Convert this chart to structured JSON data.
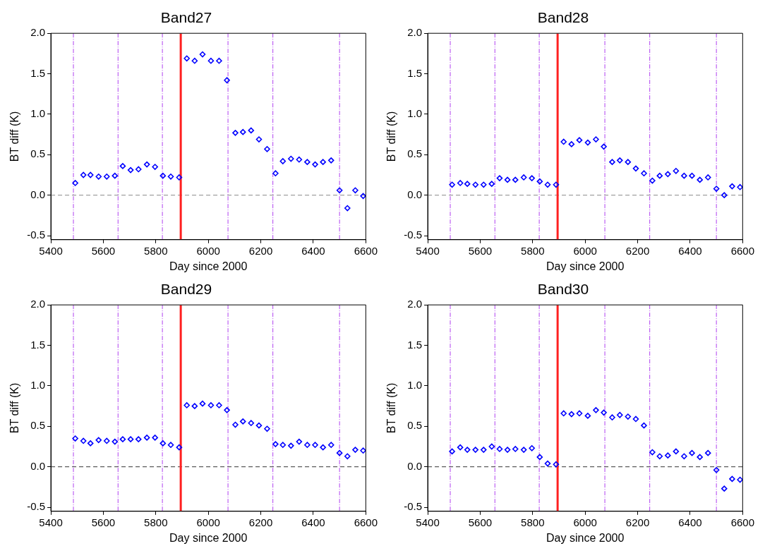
{
  "chart_data": [
    {
      "type": "scatter",
      "title": "Band27",
      "xlabel": "Day since 2000",
      "ylabel": "BT diff (K)",
      "marker": "diamond",
      "grid": false,
      "x": [
        5493,
        5524,
        5551,
        5582,
        5613,
        5644,
        5674,
        5704,
        5734,
        5766,
        5797,
        5827,
        5857,
        5889,
        5918,
        5948,
        5978,
        6010,
        6041,
        6071,
        6103,
        6132,
        6163,
        6193,
        6224,
        6256,
        6284,
        6315,
        6346,
        6377,
        6407,
        6437,
        6468,
        6500,
        6530,
        6560,
        6590
      ],
      "series": [
        {
          "color": "#0000ff",
          "values": [
            0.15,
            0.25,
            0.25,
            0.23,
            0.23,
            0.24,
            0.36,
            0.31,
            0.32,
            0.38,
            0.35,
            0.24,
            0.23,
            0.22,
            1.69,
            1.66,
            1.74,
            1.66,
            1.66,
            1.42,
            0.77,
            0.78,
            0.8,
            0.69,
            0.57,
            0.27,
            0.42,
            0.45,
            0.44,
            0.41,
            0.38,
            0.41,
            0.43,
            0.06,
            -0.16,
            0.06,
            -0.01
          ]
        }
      ],
      "xlim": [
        5400,
        6600
      ],
      "xticks": [
        5400,
        5600,
        5800,
        6000,
        6200,
        6400,
        6600
      ],
      "ylim": [
        -0.55,
        2.0
      ],
      "yticks": [
        {
          "value": -0.5,
          "label": "-0.5"
        },
        {
          "value": 0,
          "label": "0.0"
        },
        {
          "value": 0.5,
          "label": "0.5"
        },
        {
          "value": 1,
          "label": "1.0"
        },
        {
          "value": 1.5,
          "label": "1.5"
        },
        {
          "value": 2,
          "label": "2.0"
        }
      ],
      "ref_lines": [
        {
          "axis": "y",
          "value": 0,
          "color": "#888888",
          "line_style": "dashed"
        },
        {
          "axis": "x",
          "value": 5486,
          "color": "#b040f0",
          "line_style": "dashed"
        },
        {
          "axis": "x",
          "value": 5656,
          "color": "#b040f0",
          "line_style": "dashed"
        },
        {
          "axis": "x",
          "value": 5825,
          "color": "#b040f0",
          "line_style": "dashed"
        },
        {
          "axis": "x",
          "value": 5895,
          "color": "#ff2020",
          "line_style": "solid"
        },
        {
          "axis": "x",
          "value": 6075,
          "color": "#b040f0",
          "line_style": "dashed"
        },
        {
          "axis": "x",
          "value": 6246,
          "color": "#b040f0",
          "line_style": "dashed"
        },
        {
          "axis": "x",
          "value": 6500,
          "color": "#b040f0",
          "line_style": "dashed"
        }
      ]
    },
    {
      "type": "scatter",
      "title": "Band28",
      "xlabel": "Day since 2000",
      "ylabel": "BT diff (K)",
      "marker": "diamond",
      "grid": false,
      "x": [
        5493,
        5524,
        5551,
        5582,
        5613,
        5644,
        5674,
        5704,
        5734,
        5766,
        5797,
        5827,
        5857,
        5889,
        5918,
        5948,
        5978,
        6010,
        6041,
        6071,
        6103,
        6132,
        6163,
        6193,
        6224,
        6256,
        6284,
        6315,
        6346,
        6377,
        6407,
        6437,
        6468,
        6500,
        6530,
        6560,
        6590
      ],
      "series": [
        {
          "color": "#0000ff",
          "values": [
            0.13,
            0.15,
            0.14,
            0.13,
            0.13,
            0.14,
            0.21,
            0.19,
            0.19,
            0.22,
            0.21,
            0.17,
            0.13,
            0.13,
            0.66,
            0.63,
            0.68,
            0.65,
            0.69,
            0.6,
            0.41,
            0.43,
            0.41,
            0.33,
            0.27,
            0.18,
            0.24,
            0.26,
            0.3,
            0.24,
            0.24,
            0.19,
            0.22,
            0.08,
            0.0,
            0.11,
            0.1
          ]
        }
      ],
      "xlim": [
        5400,
        6600
      ],
      "xticks": [
        5400,
        5600,
        5800,
        6000,
        6200,
        6400,
        6600
      ],
      "ylim": [
        -0.55,
        2.0
      ],
      "yticks": [
        {
          "value": -0.5,
          "label": "-0.5"
        },
        {
          "value": 0,
          "label": "0.0"
        },
        {
          "value": 0.5,
          "label": "0.5"
        },
        {
          "value": 1,
          "label": "1.0"
        },
        {
          "value": 1.5,
          "label": "1.5"
        },
        {
          "value": 2,
          "label": "2.0"
        }
      ],
      "ref_lines": [
        {
          "axis": "y",
          "value": 0,
          "color": "#888888",
          "line_style": "dashed"
        },
        {
          "axis": "x",
          "value": 5486,
          "color": "#b040f0",
          "line_style": "dashed"
        },
        {
          "axis": "x",
          "value": 5656,
          "color": "#b040f0",
          "line_style": "dashed"
        },
        {
          "axis": "x",
          "value": 5825,
          "color": "#b040f0",
          "line_style": "dashed"
        },
        {
          "axis": "x",
          "value": 5895,
          "color": "#ff2020",
          "line_style": "solid"
        },
        {
          "axis": "x",
          "value": 6075,
          "color": "#b040f0",
          "line_style": "dashed"
        },
        {
          "axis": "x",
          "value": 6246,
          "color": "#b040f0",
          "line_style": "dashed"
        },
        {
          "axis": "x",
          "value": 6500,
          "color": "#b040f0",
          "line_style": "dashed"
        }
      ]
    },
    {
      "type": "scatter",
      "title": "Band29",
      "xlabel": "Day since 2000",
      "ylabel": "BT diff (K)",
      "marker": "diamond",
      "grid": false,
      "x": [
        5493,
        5524,
        5551,
        5582,
        5613,
        5644,
        5674,
        5704,
        5734,
        5766,
        5797,
        5827,
        5857,
        5889,
        5918,
        5948,
        5978,
        6010,
        6041,
        6071,
        6103,
        6132,
        6163,
        6193,
        6224,
        6256,
        6284,
        6315,
        6346,
        6377,
        6407,
        6437,
        6468,
        6500,
        6530,
        6560,
        6590
      ],
      "series": [
        {
          "color": "#0000ff",
          "values": [
            0.35,
            0.32,
            0.29,
            0.33,
            0.32,
            0.31,
            0.34,
            0.34,
            0.34,
            0.36,
            0.36,
            0.29,
            0.27,
            0.24,
            0.76,
            0.75,
            0.78,
            0.76,
            0.76,
            0.7,
            0.52,
            0.56,
            0.54,
            0.51,
            0.47,
            0.28,
            0.27,
            0.26,
            0.31,
            0.27,
            0.27,
            0.24,
            0.27,
            0.17,
            0.13,
            0.21,
            0.2
          ]
        }
      ],
      "xlim": [
        5400,
        6600
      ],
      "xticks": [
        5400,
        5600,
        5800,
        6000,
        6200,
        6400,
        6600
      ],
      "ylim": [
        -0.55,
        2.0
      ],
      "yticks": [
        {
          "value": -0.5,
          "label": "-0.5"
        },
        {
          "value": 0,
          "label": "0.0"
        },
        {
          "value": 0.5,
          "label": "0.5"
        },
        {
          "value": 1,
          "label": "1.0"
        },
        {
          "value": 1.5,
          "label": "1.5"
        },
        {
          "value": 2,
          "label": "2.0"
        }
      ],
      "ref_lines": [
        {
          "axis": "y",
          "value": 0,
          "color": "#333333",
          "line_style": "dashed"
        },
        {
          "axis": "x",
          "value": 5486,
          "color": "#b040f0",
          "line_style": "dashed"
        },
        {
          "axis": "x",
          "value": 5656,
          "color": "#b040f0",
          "line_style": "dashed"
        },
        {
          "axis": "x",
          "value": 5825,
          "color": "#b040f0",
          "line_style": "dashed"
        },
        {
          "axis": "x",
          "value": 5895,
          "color": "#ff2020",
          "line_style": "solid"
        },
        {
          "axis": "x",
          "value": 6075,
          "color": "#b040f0",
          "line_style": "dashed"
        },
        {
          "axis": "x",
          "value": 6246,
          "color": "#b040f0",
          "line_style": "dashed"
        },
        {
          "axis": "x",
          "value": 6500,
          "color": "#b040f0",
          "line_style": "dashed"
        }
      ]
    },
    {
      "type": "scatter",
      "title": "Band30",
      "xlabel": "Day since 2000",
      "ylabel": "BT diff (K)",
      "marker": "diamond",
      "grid": false,
      "x": [
        5493,
        5524,
        5551,
        5582,
        5613,
        5644,
        5674,
        5704,
        5734,
        5766,
        5797,
        5827,
        5857,
        5889,
        5918,
        5948,
        5978,
        6010,
        6041,
        6071,
        6103,
        6132,
        6163,
        6193,
        6224,
        6256,
        6284,
        6315,
        6346,
        6377,
        6407,
        6437,
        6468,
        6500,
        6530,
        6560,
        6590
      ],
      "series": [
        {
          "color": "#0000ff",
          "values": [
            0.19,
            0.24,
            0.21,
            0.21,
            0.21,
            0.25,
            0.22,
            0.21,
            0.22,
            0.21,
            0.23,
            0.12,
            0.04,
            0.03,
            0.66,
            0.65,
            0.66,
            0.63,
            0.7,
            0.67,
            0.61,
            0.64,
            0.62,
            0.59,
            0.51,
            0.18,
            0.13,
            0.14,
            0.19,
            0.13,
            0.17,
            0.12,
            0.17,
            -0.04,
            -0.27,
            -0.15,
            -0.16
          ]
        }
      ],
      "xlim": [
        5400,
        6600
      ],
      "xticks": [
        5400,
        5600,
        5800,
        6000,
        6200,
        6400,
        6600
      ],
      "ylim": [
        -0.55,
        2.0
      ],
      "yticks": [
        {
          "value": -0.5,
          "label": "-0.5"
        },
        {
          "value": 0,
          "label": "0.0"
        },
        {
          "value": 0.5,
          "label": "0.5"
        },
        {
          "value": 1,
          "label": "1.0"
        },
        {
          "value": 1.5,
          "label": "1.5"
        },
        {
          "value": 2,
          "label": "2.0"
        }
      ],
      "ref_lines": [
        {
          "axis": "y",
          "value": 0,
          "color": "#333333",
          "line_style": "dashed"
        },
        {
          "axis": "x",
          "value": 5486,
          "color": "#b040f0",
          "line_style": "dashed"
        },
        {
          "axis": "x",
          "value": 5656,
          "color": "#b040f0",
          "line_style": "dashed"
        },
        {
          "axis": "x",
          "value": 5825,
          "color": "#b040f0",
          "line_style": "dashed"
        },
        {
          "axis": "x",
          "value": 5895,
          "color": "#ff2020",
          "line_style": "solid"
        },
        {
          "axis": "x",
          "value": 6075,
          "color": "#b040f0",
          "line_style": "dashed"
        },
        {
          "axis": "x",
          "value": 6246,
          "color": "#b040f0",
          "line_style": "dashed"
        },
        {
          "axis": "x",
          "value": 6500,
          "color": "#b040f0",
          "line_style": "dashed"
        }
      ]
    }
  ]
}
